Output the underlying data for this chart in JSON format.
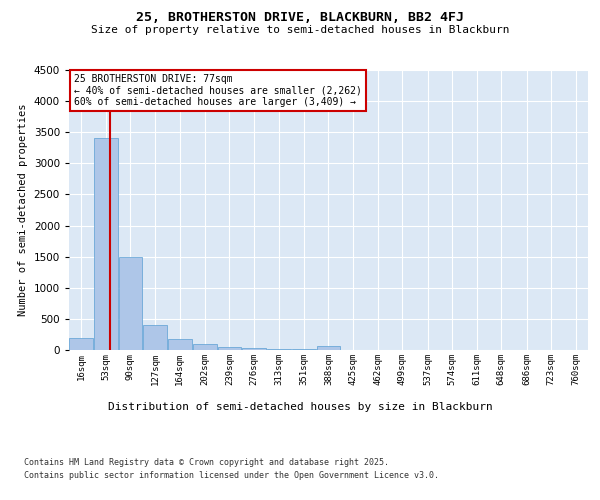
{
  "title1": "25, BROTHERSTON DRIVE, BLACKBURN, BB2 4FJ",
  "title2": "Size of property relative to semi-detached houses in Blackburn",
  "xlabel": "Distribution of semi-detached houses by size in Blackburn",
  "ylabel": "Number of semi-detached properties",
  "annotation_title": "25 BROTHERSTON DRIVE: 77sqm",
  "annotation_line1": "← 40% of semi-detached houses are smaller (2,262)",
  "annotation_line2": "60% of semi-detached houses are larger (3,409) →",
  "property_sqm": 77,
  "bin_labels": [
    "16sqm",
    "53sqm",
    "90sqm",
    "127sqm",
    "164sqm",
    "202sqm",
    "239sqm",
    "276sqm",
    "313sqm",
    "351sqm",
    "388sqm",
    "425sqm",
    "462sqm",
    "499sqm",
    "537sqm",
    "574sqm",
    "611sqm",
    "648sqm",
    "686sqm",
    "723sqm",
    "760sqm"
  ],
  "bin_edges": [
    16,
    53,
    90,
    127,
    164,
    202,
    239,
    276,
    313,
    351,
    388,
    425,
    462,
    499,
    537,
    574,
    611,
    648,
    686,
    723,
    760
  ],
  "bar_heights": [
    200,
    3400,
    1500,
    400,
    175,
    100,
    50,
    30,
    20,
    10,
    60,
    5,
    5,
    0,
    0,
    0,
    0,
    0,
    0,
    0,
    0
  ],
  "bar_color": "#aec6e8",
  "bar_edge_color": "#5a9fd4",
  "vline_color": "#cc0000",
  "vline_sqm": 77,
  "ylim": [
    0,
    4500
  ],
  "yticks": [
    0,
    500,
    1000,
    1500,
    2000,
    2500,
    3000,
    3500,
    4000,
    4500
  ],
  "fig_bg_color": "#ffffff",
  "plot_bg_color": "#dce8f5",
  "footer_line1": "Contains HM Land Registry data © Crown copyright and database right 2025.",
  "footer_line2": "Contains public sector information licensed under the Open Government Licence v3.0."
}
